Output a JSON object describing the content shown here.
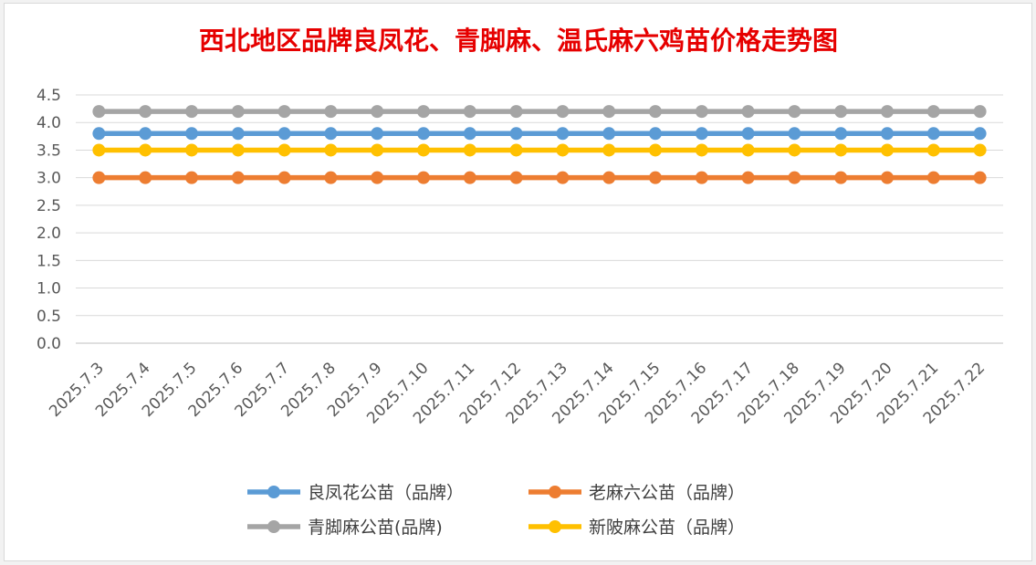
{
  "chart_data": {
    "type": "line",
    "title": "西北地区品牌良凤花、青脚麻、温氏麻六鸡苗价格走势图",
    "title_color": "#e60000",
    "categories": [
      "2025.7.3",
      "2025.7.4",
      "2025.7.5",
      "2025.7.6",
      "2025.7.7",
      "2025.7.8",
      "2025.7.9",
      "2025.7.10",
      "2025.7.11",
      "2025.7.12",
      "2025.7.13",
      "2025.7.14",
      "2025.7.15",
      "2025.7.16",
      "2025.7.17",
      "2025.7.18",
      "2025.7.19",
      "2025.7.20",
      "2025.7.21",
      "2025.7.22"
    ],
    "y_ticks": [
      "0.0",
      "0.5",
      "1.0",
      "1.5",
      "2.0",
      "2.5",
      "3.0",
      "3.5",
      "4.0",
      "4.5"
    ],
    "ylim": [
      0,
      4.5
    ],
    "grid": true,
    "legend_position": "bottom",
    "series": [
      {
        "name": "良凤花公苗（品牌）",
        "color": "#5b9bd5",
        "values": [
          3.8,
          3.8,
          3.8,
          3.8,
          3.8,
          3.8,
          3.8,
          3.8,
          3.8,
          3.8,
          3.8,
          3.8,
          3.8,
          3.8,
          3.8,
          3.8,
          3.8,
          3.8,
          3.8,
          3.8
        ]
      },
      {
        "name": "老麻六公苗（品牌）",
        "color": "#ed7d31",
        "values": [
          3.0,
          3.0,
          3.0,
          3.0,
          3.0,
          3.0,
          3.0,
          3.0,
          3.0,
          3.0,
          3.0,
          3.0,
          3.0,
          3.0,
          3.0,
          3.0,
          3.0,
          3.0,
          3.0,
          3.0
        ]
      },
      {
        "name": "青脚麻公苗(品牌)",
        "color": "#a5a5a5",
        "values": [
          4.2,
          4.2,
          4.2,
          4.2,
          4.2,
          4.2,
          4.2,
          4.2,
          4.2,
          4.2,
          4.2,
          4.2,
          4.2,
          4.2,
          4.2,
          4.2,
          4.2,
          4.2,
          4.2,
          4.2
        ]
      },
      {
        "name": "新陂麻公苗（品牌）",
        "color": "#ffc000",
        "values": [
          3.5,
          3.5,
          3.5,
          3.5,
          3.5,
          3.5,
          3.5,
          3.5,
          3.5,
          3.5,
          3.5,
          3.5,
          3.5,
          3.5,
          3.5,
          3.5,
          3.5,
          3.5,
          3.5,
          3.5
        ]
      }
    ]
  }
}
